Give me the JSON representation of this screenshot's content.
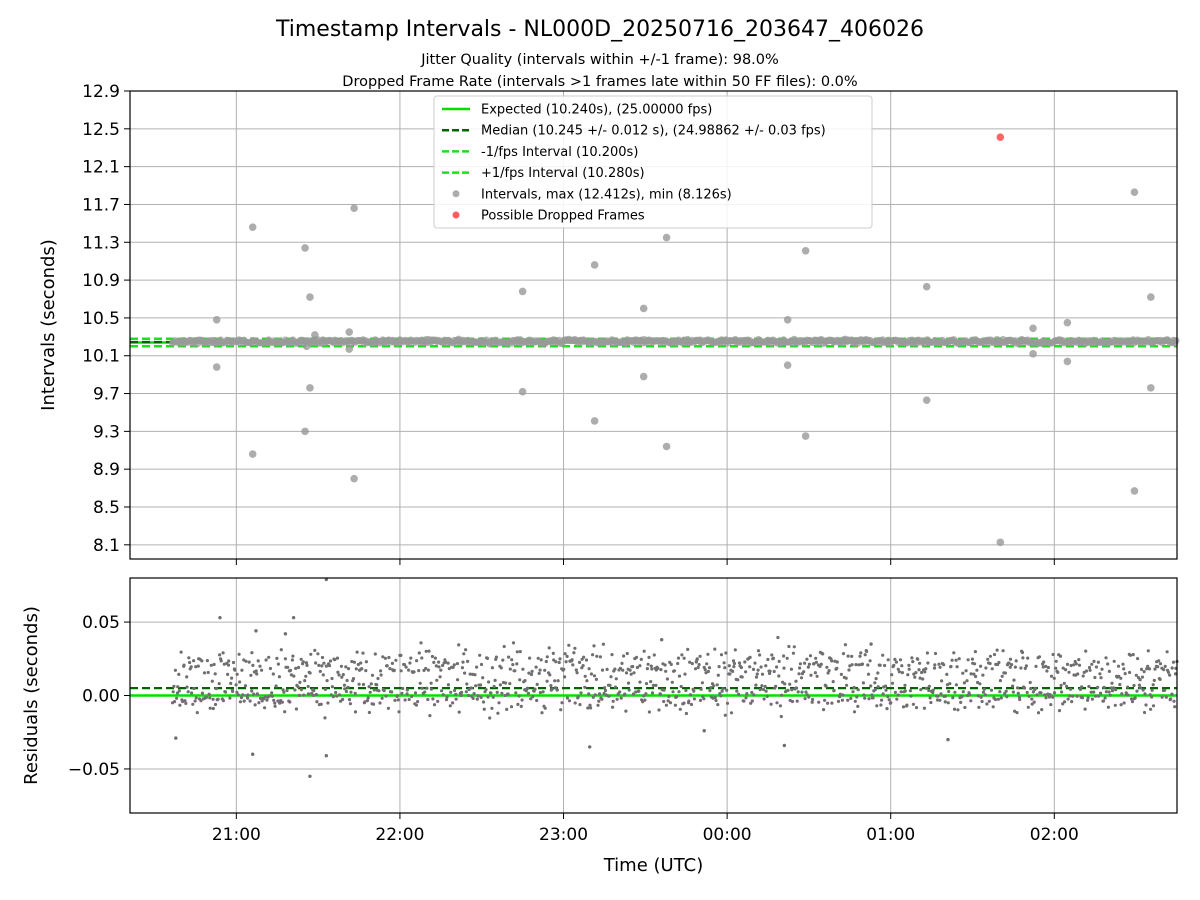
{
  "chart_data": [
    {
      "type": "scatter",
      "title": "Timestamp Intervals - NL000D_20250716_203647_406026",
      "subtitle_lines": [
        "Jitter Quality (intervals within +/-1 frame): 98.0%",
        "Dropped Frame Rate (intervals >1 frames late within 50 FF files): 0.0%"
      ],
      "xlabel": "",
      "ylabel": "Intervals (seconds)",
      "ylim": [
        7.95,
        12.9
      ],
      "yticks": [
        "12.9",
        "12.5",
        "12.1",
        "11.7",
        "11.3",
        "10.9",
        "10.5",
        "10.1",
        "9.7",
        "9.3",
        "8.9",
        "8.5",
        "8.1"
      ],
      "grid": true,
      "legend_placement": "top-center",
      "legend": [
        "Expected (10.240s), (25.00000 fps)",
        "Median (10.245 +/- 0.012 s), (24.98862 +/- 0.03 fps)",
        "-1/fps Interval (10.200s)",
        "+1/fps Interval (10.280s)",
        "Intervals, max (12.412s), min (8.126s)",
        "Possible Dropped Frames"
      ],
      "reference_lines": {
        "expected": 10.24,
        "median": 10.245,
        "minus_one_fps": 10.2,
        "plus_one_fps": 10.28
      },
      "outlier_points": [
        {
          "x": 20.88,
          "y": 10.48
        },
        {
          "x": 20.88,
          "y": 9.98
        },
        {
          "x": 21.1,
          "y": 11.46
        },
        {
          "x": 21.1,
          "y": 9.06
        },
        {
          "x": 21.42,
          "y": 11.24
        },
        {
          "x": 21.42,
          "y": 9.3
        },
        {
          "x": 21.45,
          "y": 10.72
        },
        {
          "x": 21.45,
          "y": 9.76
        },
        {
          "x": 21.48,
          "y": 10.32
        },
        {
          "x": 21.43,
          "y": 10.2
        },
        {
          "x": 21.69,
          "y": 10.35
        },
        {
          "x": 21.69,
          "y": 10.17
        },
        {
          "x": 21.72,
          "y": 11.66
        },
        {
          "x": 21.72,
          "y": 8.8
        },
        {
          "x": 22.75,
          "y": 10.78
        },
        {
          "x": 22.75,
          "y": 9.72
        },
        {
          "x": 23.19,
          "y": 11.06
        },
        {
          "x": 23.19,
          "y": 9.41
        },
        {
          "x": 23.49,
          "y": 10.6
        },
        {
          "x": 23.49,
          "y": 9.88
        },
        {
          "x": 23.63,
          "y": 11.35
        },
        {
          "x": 23.63,
          "y": 9.14
        },
        {
          "x": 24.37,
          "y": 10.48
        },
        {
          "x": 24.37,
          "y": 10.0
        },
        {
          "x": 24.48,
          "y": 11.21
        },
        {
          "x": 24.48,
          "y": 9.25
        },
        {
          "x": 25.22,
          "y": 10.83
        },
        {
          "x": 25.22,
          "y": 9.63
        },
        {
          "x": 25.67,
          "y": 8.126
        },
        {
          "x": 25.87,
          "y": 10.39
        },
        {
          "x": 25.87,
          "y": 10.12
        },
        {
          "x": 26.08,
          "y": 10.45
        },
        {
          "x": 26.08,
          "y": 10.04
        },
        {
          "x": 26.49,
          "y": 11.83
        },
        {
          "x": 26.49,
          "y": 8.67
        },
        {
          "x": 26.59,
          "y": 10.72
        },
        {
          "x": 26.59,
          "y": 9.76
        }
      ],
      "dropped_frames": [
        {
          "x": 25.67,
          "y": 12.412
        }
      ],
      "series_colors": {
        "expected": "#00e000",
        "median": "#006400",
        "bounds": "#22dd22",
        "intervals": "#999999",
        "dropped": "#ff3333"
      }
    },
    {
      "type": "scatter",
      "title": "",
      "xlabel": "Time (UTC)",
      "ylabel": "Residuals (seconds)",
      "ylim": [
        -0.08,
        0.08
      ],
      "yticks": [
        "0.05",
        "0.00",
        "−0.05"
      ],
      "xlim_hours": [
        20.35,
        26.75
      ],
      "xticks": [
        {
          "h": 21,
          "label": "21:00"
        },
        {
          "h": 22,
          "label": "22:00"
        },
        {
          "h": 23,
          "label": "23:00"
        },
        {
          "h": 24,
          "label": "00:00"
        },
        {
          "h": 25,
          "label": "01:00"
        },
        {
          "h": 26,
          "label": "02:00"
        }
      ],
      "grid": true,
      "reference_lines": {
        "expected": 0.0,
        "median": 0.005
      },
      "data_start_hour": 20.61,
      "data_end_hour": 26.75,
      "residual_bands_seconds": [
        0.0,
        0.02
      ],
      "residual_outliers": [
        {
          "x": 20.9,
          "y": 0.053
        },
        {
          "x": 21.35,
          "y": 0.053
        },
        {
          "x": 21.3,
          "y": 0.042
        },
        {
          "x": 21.12,
          "y": 0.044
        },
        {
          "x": 21.55,
          "y": 0.079
        },
        {
          "x": 21.45,
          "y": -0.055
        },
        {
          "x": 21.55,
          "y": -0.041
        },
        {
          "x": 21.1,
          "y": -0.04
        },
        {
          "x": 20.63,
          "y": -0.029
        },
        {
          "x": 23.16,
          "y": -0.035
        },
        {
          "x": 23.86,
          "y": -0.024
        },
        {
          "x": 24.35,
          "y": -0.034
        },
        {
          "x": 24.88,
          "y": 0.035
        },
        {
          "x": 25.35,
          "y": -0.03
        },
        {
          "x": 23.6,
          "y": 0.038
        }
      ],
      "series_colors": {
        "points": "#6f6f6f",
        "expected": "#00e000",
        "median": "#006400"
      }
    }
  ]
}
